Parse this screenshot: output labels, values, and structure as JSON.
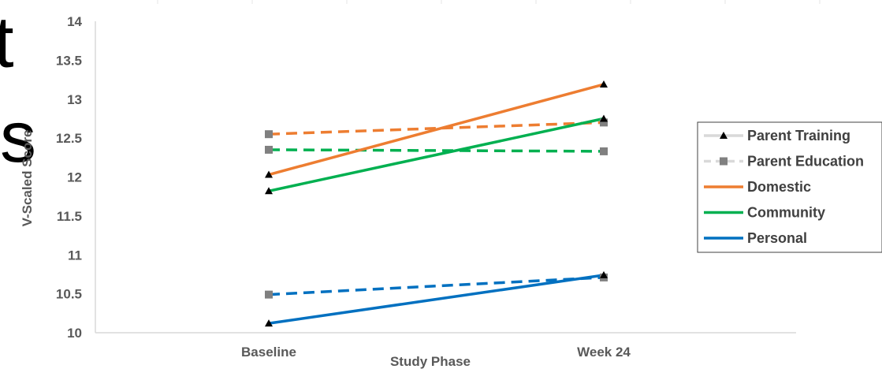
{
  "background_text": [
    "t",
    "s"
  ],
  "chart_data": {
    "type": "line",
    "title": "",
    "xlabel": "Study Phase",
    "ylabel": "V-Scaled Score",
    "categories": [
      "Baseline",
      "Week 24"
    ],
    "ylim": [
      10,
      14
    ],
    "yticks": [
      "10",
      "10.5",
      "11",
      "11.5",
      "12",
      "12.5",
      "13",
      "13.5",
      "14"
    ],
    "grid": false,
    "legend_position": "right",
    "legend": [
      {
        "label": "Parent Training",
        "color": "#d9d9d9",
        "dash": "solid",
        "marker": "triangle",
        "marker_color": "#000000"
      },
      {
        "label": "Parent Education",
        "color": "#d9d9d9",
        "dash": "dashed",
        "marker": "square",
        "marker_color": "#808080"
      },
      {
        "label": "Domestic",
        "color": "#ed7d31",
        "dash": "solid",
        "marker": "none"
      },
      {
        "label": "Community",
        "color": "#00b050",
        "dash": "solid",
        "marker": "none"
      },
      {
        "label": "Personal",
        "color": "#0070c0",
        "dash": "solid",
        "marker": "none"
      }
    ],
    "series": [
      {
        "name": "Domestic",
        "group": "Parent Training",
        "color": "#ed7d31",
        "dash": "solid",
        "marker": "triangle",
        "values": [
          12.03,
          13.19
        ]
      },
      {
        "name": "Community",
        "group": "Parent Training",
        "color": "#00b050",
        "dash": "solid",
        "marker": "triangle",
        "values": [
          11.82,
          12.75
        ]
      },
      {
        "name": "Personal",
        "group": "Parent Training",
        "color": "#0070c0",
        "dash": "solid",
        "marker": "triangle",
        "values": [
          10.12,
          10.74
        ]
      },
      {
        "name": "Domestic",
        "group": "Parent Education",
        "color": "#ed7d31",
        "dash": "dashed",
        "marker": "square",
        "values": [
          12.55,
          12.7
        ]
      },
      {
        "name": "Community",
        "group": "Parent Education",
        "color": "#00b050",
        "dash": "dashed",
        "marker": "square",
        "values": [
          12.35,
          12.33
        ]
      },
      {
        "name": "Personal",
        "group": "Parent Education",
        "color": "#0070c0",
        "dash": "dashed",
        "marker": "square",
        "values": [
          10.49,
          10.71
        ]
      }
    ]
  }
}
